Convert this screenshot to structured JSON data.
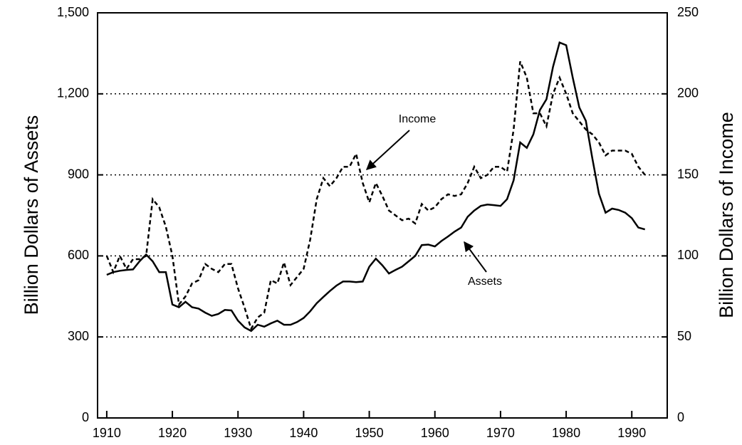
{
  "chart_data": {
    "type": "line",
    "y_label": "Billion Dollars of Assets",
    "y2_label": "Billion Dollars of Income",
    "x": [
      1910,
      1911,
      1912,
      1913,
      1914,
      1915,
      1916,
      1917,
      1918,
      1919,
      1920,
      1921,
      1922,
      1923,
      1924,
      1925,
      1926,
      1927,
      1928,
      1929,
      1930,
      1931,
      1932,
      1933,
      1934,
      1935,
      1936,
      1937,
      1938,
      1939,
      1940,
      1941,
      1942,
      1943,
      1944,
      1945,
      1946,
      1947,
      1948,
      1949,
      1950,
      1951,
      1952,
      1953,
      1954,
      1955,
      1956,
      1957,
      1958,
      1959,
      1960,
      1961,
      1962,
      1963,
      1964,
      1965,
      1966,
      1967,
      1968,
      1969,
      1970,
      1971,
      1972,
      1973,
      1974,
      1975,
      1976,
      1977,
      1978,
      1979,
      1980,
      1981,
      1982,
      1983,
      1984,
      1985,
      1986,
      1987,
      1988,
      1989,
      1990,
      1991,
      1992
    ],
    "series": [
      {
        "name": "Assets",
        "color": "#000000",
        "dash": "solid",
        "values": [
          530,
          540,
          545,
          548,
          550,
          580,
          605,
          580,
          540,
          540,
          420,
          410,
          430,
          410,
          405,
          390,
          378,
          385,
          400,
          398,
          360,
          335,
          322,
          345,
          338,
          350,
          360,
          345,
          345,
          355,
          370,
          395,
          425,
          448,
          470,
          490,
          505,
          505,
          503,
          505,
          560,
          590,
          565,
          535,
          548,
          560,
          580,
          600,
          640,
          642,
          635,
          655,
          672,
          690,
          705,
          745,
          768,
          785,
          790,
          788,
          785,
          810,
          880,
          1020,
          1000,
          1050,
          1140,
          1180,
          1300,
          1390,
          1380,
          1260,
          1150,
          1100,
          960,
          830,
          760,
          775,
          770,
          760,
          740,
          705,
          698
        ]
      },
      {
        "name": "Income",
        "color": "#000000",
        "dash": "dashed",
        "axis": "y2",
        "values": [
          100,
          90,
          100,
          92,
          98,
          98,
          100,
          135,
          130,
          118,
          100,
          70,
          75,
          83,
          85,
          95,
          92,
          90,
          95,
          95,
          80,
          68,
          55,
          62,
          65,
          85,
          83,
          96,
          82,
          87,
          92,
          110,
          135,
          148,
          143,
          148,
          155,
          155,
          163,
          145,
          133,
          145,
          137,
          128,
          125,
          122,
          123,
          120,
          132,
          128,
          130,
          135,
          138,
          137,
          138,
          145,
          155,
          148,
          150,
          155,
          155,
          152,
          178,
          220,
          210,
          188,
          188,
          180,
          200,
          210,
          200,
          188,
          183,
          178,
          175,
          170,
          162,
          165,
          165,
          165,
          163,
          155,
          150
        ]
      }
    ],
    "xlim": [
      1908.6,
      1995.4
    ],
    "xticks": [
      1910,
      1920,
      1930,
      1940,
      1950,
      1960,
      1970,
      1980,
      1990
    ],
    "ylim": [
      0,
      1500
    ],
    "yticks": [
      0,
      300,
      600,
      900,
      {
        "value": 1200,
        "label": "1,200"
      },
      {
        "value": 1500,
        "label": "1,500"
      }
    ],
    "y2lim": [
      0,
      250
    ],
    "y2ticks": [
      0,
      50,
      100,
      150,
      200,
      250
    ],
    "grid": true
  }
}
